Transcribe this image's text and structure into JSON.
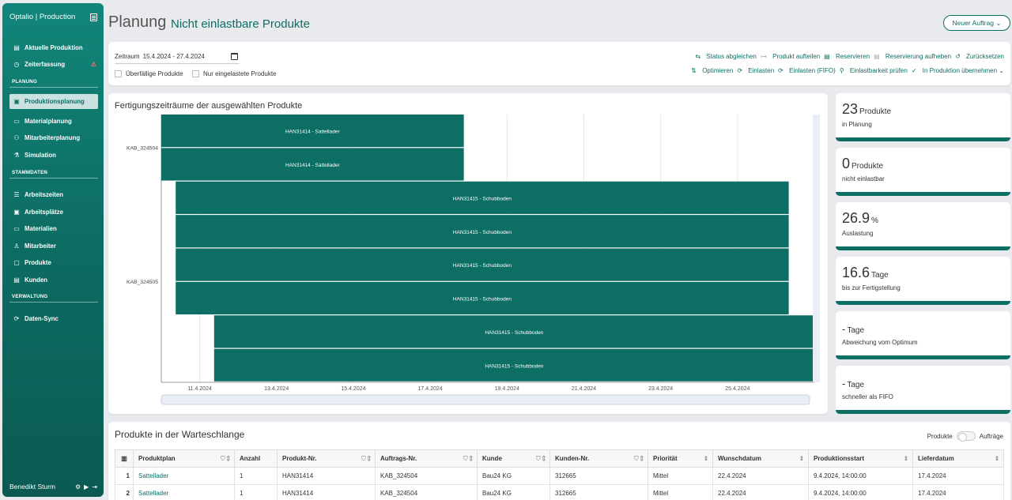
{
  "sidebar": {
    "brand": "Optalio | Production",
    "items": [
      {
        "label": "Aktuelle Produktion",
        "icon": "clipboard-icon"
      },
      {
        "label": "Zeiterfassung",
        "icon": "clock-icon"
      },
      {
        "label": "Produktionsplanung",
        "icon": "plan-icon"
      },
      {
        "label": "Materialplanung",
        "icon": "box-icon"
      },
      {
        "label": "Mitarbeiterplanung",
        "icon": "people-icon"
      },
      {
        "label": "Simulation",
        "icon": "simulation-icon"
      },
      {
        "label": "Arbeitszeiten",
        "icon": "list-icon"
      },
      {
        "label": "Arbeitsplätze",
        "icon": "workplace-icon"
      },
      {
        "label": "Materialien",
        "icon": "box-icon"
      },
      {
        "label": "Mitarbeiter",
        "icon": "person-icon"
      },
      {
        "label": "Produkte",
        "icon": "product-icon"
      },
      {
        "label": "Kunden",
        "icon": "card-icon"
      },
      {
        "label": "Daten-Sync",
        "icon": "sync-icon"
      }
    ],
    "sections": {
      "planung": "PLANUNG",
      "stammdaten": "STAMMDATEN",
      "verwaltung": "VERWALTUNG"
    },
    "user": "Benedikt Sturm"
  },
  "header": {
    "title": "Planung",
    "subtitle": "Nicht einlastbare Produkte",
    "new_order": "Neuer Auftrag"
  },
  "filters": {
    "zeitraum_label": "Zeitraum",
    "zeitraum_value": "15.4.2024 - 27.4.2024",
    "overdue": "Überfällige Produkte",
    "only_loaded": "Nur eingelastete Produkte"
  },
  "actions_row1": {
    "status": "Status abgleichen",
    "split": "Produkt aufteilen",
    "reserve": "Reservieren",
    "unreserve": "Reservierung aufheben",
    "reset": "Zurücksetzen"
  },
  "actions_row2": {
    "optimize": "Optimieren",
    "load": "Einlasten",
    "load_fifo": "Einlasten (FIFO)",
    "check": "Einlastbarkeit prüfen",
    "take_over": "In Produktion übernehmen"
  },
  "chart_data": {
    "type": "gantt",
    "title": "Fertigungszeiträume der ausgewählten Produkte",
    "groups": [
      "KAB_324504",
      "KAB_324505"
    ],
    "x_ticks": [
      "11.4.2024",
      "13.4.2024",
      "15.4.2024",
      "17.4.2024",
      "19.4.2024",
      "21.4.2024",
      "23.4.2024",
      "25.4.2024"
    ],
    "xlim": [
      "2024-04-10T00:00",
      "2024-04-27T00:00"
    ],
    "bars": [
      {
        "group": "KAB_324504",
        "label": "HAN31414 - Sattellader",
        "start": "2024-04-10T00:00",
        "end": "2024-04-17T21:00"
      },
      {
        "group": "KAB_324504",
        "label": "HAN31414 - Sattellader",
        "start": "2024-04-10T00:00",
        "end": "2024-04-17T21:00"
      },
      {
        "group": "KAB_324505",
        "label": "HAN31415 - Schubboden",
        "start": "2024-04-10T09:00",
        "end": "2024-04-26T08:00"
      },
      {
        "group": "KAB_324505",
        "label": "HAN31415 - Schubboden",
        "start": "2024-04-10T09:00",
        "end": "2024-04-26T08:00"
      },
      {
        "group": "KAB_324505",
        "label": "HAN31415 - Schubboden",
        "start": "2024-04-10T09:00",
        "end": "2024-04-26T08:00"
      },
      {
        "group": "KAB_324505",
        "label": "HAN31415 - Schubboden",
        "start": "2024-04-10T09:00",
        "end": "2024-04-26T08:00"
      },
      {
        "group": "KAB_324505",
        "label": "HAN31415 - Schubboden",
        "start": "2024-04-11T09:00",
        "end": "2024-04-27T00:00"
      },
      {
        "group": "KAB_324505",
        "label": "HAN31415 - Schubboden",
        "start": "2024-04-11T09:00",
        "end": "2024-04-27T00:00"
      }
    ],
    "bar_color": "#0d6e64"
  },
  "kpis": [
    {
      "value": "23",
      "unit": "Produkte",
      "label": "in Planung"
    },
    {
      "value": "0",
      "unit": "Produkte",
      "label": "nicht einlastbar"
    },
    {
      "value": "26.9",
      "unit": "%",
      "label": "Auslastung"
    },
    {
      "value": "16.6",
      "unit": "Tage",
      "label": "bis zur Fertigstellung"
    },
    {
      "value": "-",
      "unit": "Tage",
      "label": "Abweichung vom Optimum"
    },
    {
      "value": "-",
      "unit": "Tage",
      "label": "schneller als FIFO"
    }
  ],
  "queue": {
    "title": "Produkte in der Warteschlange",
    "toggle_left": "Produkte",
    "toggle_right": "Aufträge",
    "columns": [
      "Produktplan",
      "Anzahl",
      "Produkt-Nr.",
      "Auftrags-Nr.",
      "Kunde",
      "Kunden-Nr.",
      "Priorität",
      "Wunschdatum",
      "Produktionsstart",
      "Lieferdatum"
    ],
    "rows": [
      {
        "idx": "1",
        "plan": "Sattellader",
        "anzahl": "1",
        "produkt": "HAN31414",
        "auftrag": "KAB_324504",
        "kunde": "Bau24 KG",
        "kundennr": "312665",
        "prio": "Mittel",
        "wunsch": "22.4.2024",
        "start": "9.4.2024, 14:00:00",
        "liefer": "17.4.2024"
      },
      {
        "idx": "2",
        "plan": "Sattellader",
        "anzahl": "1",
        "produkt": "HAN31414",
        "auftrag": "KAB_324504",
        "kunde": "Bau24 KG",
        "kundennr": "312665",
        "prio": "Mittel",
        "wunsch": "22.4.2024",
        "start": "9.4.2024, 14:00:00",
        "liefer": "17.4.2024"
      }
    ]
  },
  "colors": {
    "primary": "#0d6e64",
    "link": "#0d6e64"
  }
}
